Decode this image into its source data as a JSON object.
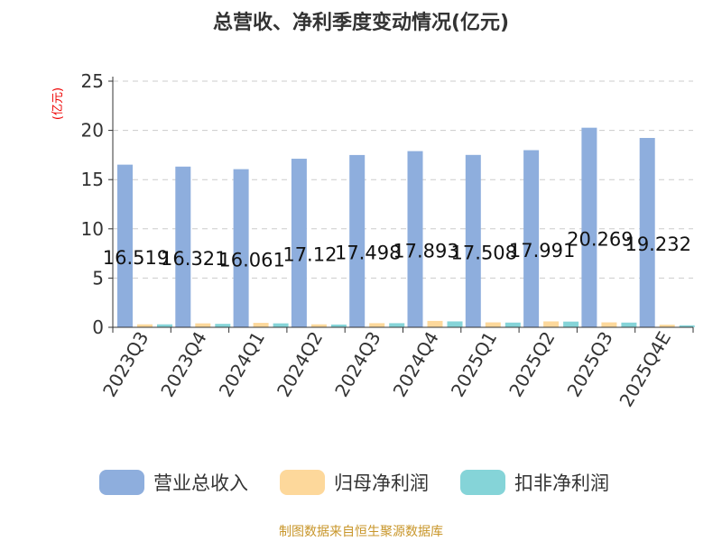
{
  "source": "制图数据来自恒生聚源数据库",
  "chart_data": {
    "type": "bar",
    "title": "总营收、净利季度变动情况(亿元)",
    "ylabel": "(亿元)",
    "ylim": [
      0,
      25
    ],
    "yticks": [
      0,
      5,
      10,
      15,
      20,
      25
    ],
    "grid": true,
    "legend_placement": "bottom",
    "categories": [
      "2023Q3",
      "2023Q4",
      "2024Q1",
      "2024Q2",
      "2024Q3",
      "2024Q4",
      "2025Q1",
      "2025Q2",
      "2025Q3",
      "2025Q4E"
    ],
    "series": [
      {
        "name": "营业总收入",
        "color": "#8eaedd",
        "values": [
          16.519,
          16.321,
          16.061,
          17.12,
          17.498,
          17.893,
          17.508,
          17.991,
          20.269,
          19.232
        ],
        "labels": [
          "16.519",
          "16.321",
          "16.061",
          "17.12",
          "17.498",
          "17.893",
          "17.508",
          "17.991",
          "20.269",
          "19.232"
        ]
      },
      {
        "name": "归母净利润",
        "color": "#fdd89b",
        "values": [
          0.3,
          0.4,
          0.45,
          0.3,
          0.42,
          0.65,
          0.5,
          0.6,
          0.5,
          0.26
        ]
      },
      {
        "name": "扣非净利润",
        "color": "#85d4d8",
        "values": [
          0.3,
          0.35,
          0.4,
          0.28,
          0.42,
          0.6,
          0.48,
          0.58,
          0.48,
          0.2
        ]
      }
    ]
  }
}
